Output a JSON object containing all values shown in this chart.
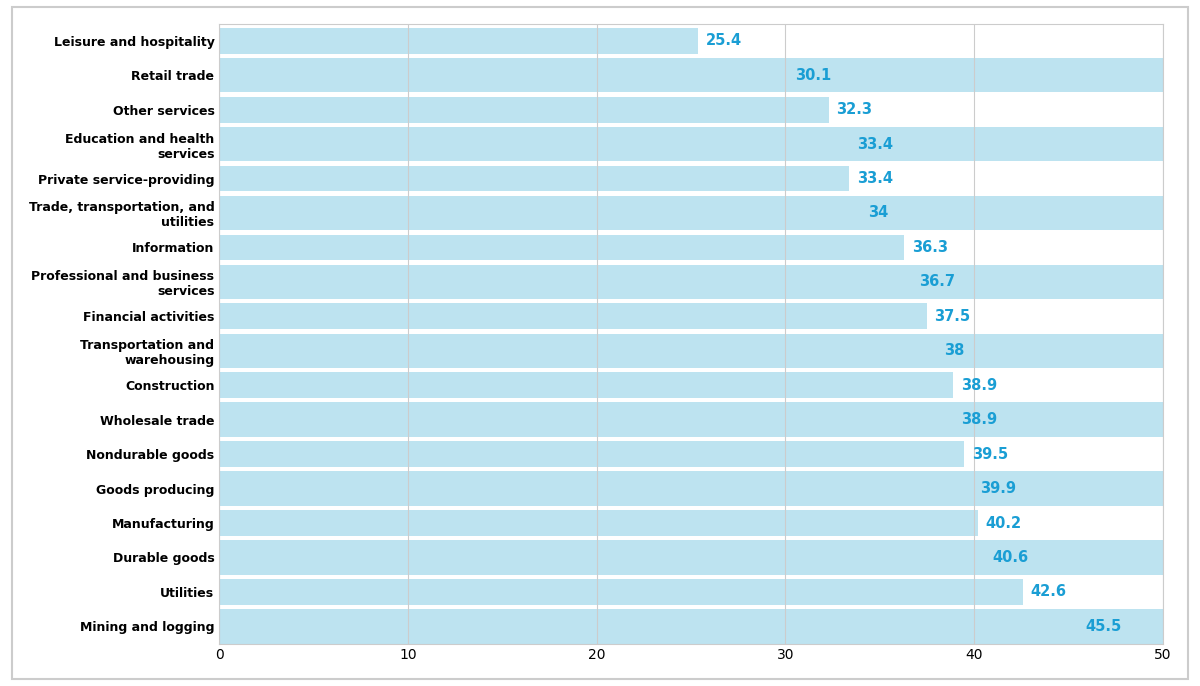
{
  "categories": [
    "Mining and logging",
    "Utilities",
    "Durable goods",
    "Manufacturing",
    "Goods producing",
    "Nondurable goods",
    "Wholesale trade",
    "Construction",
    "Transportation and\nwarehousing",
    "Financial activities",
    "Professional and business\nservices",
    "Information",
    "Trade, transportation, and\nutilities",
    "Private service-providing",
    "Education and health\nservices",
    "Other services",
    "Retail trade",
    "Leisure and hospitality"
  ],
  "values": [
    45.5,
    42.6,
    40.6,
    40.2,
    39.9,
    39.5,
    38.9,
    38.9,
    38.0,
    37.5,
    36.7,
    36.3,
    34.0,
    33.4,
    33.4,
    32.3,
    30.1,
    25.4
  ],
  "bar_color": "#bde3f0",
  "label_color": "#1a9ed4",
  "background_color": "#ffffff",
  "row_alt_color": "#ffffff",
  "grid_color": "#cccccc",
  "xlim": [
    0,
    50
  ],
  "xticks": [
    0,
    10,
    20,
    30,
    40,
    50
  ],
  "bar_height": 0.75,
  "label_fontsize": 9.0,
  "tick_fontsize": 10,
  "value_fontsize": 10.5,
  "border_color": "#cccccc"
}
